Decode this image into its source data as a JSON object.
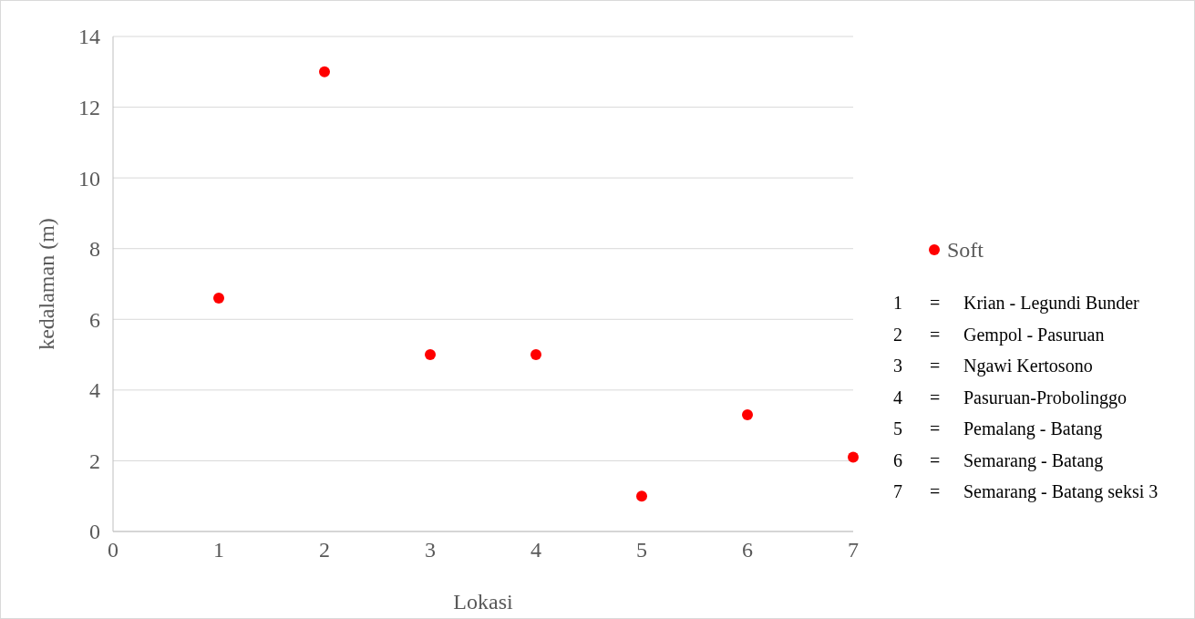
{
  "chart_data": {
    "type": "scatter",
    "xlabel": "Lokasi",
    "ylabel": "kedalaman (m)",
    "x": [
      1,
      2,
      3,
      4,
      5,
      6,
      7
    ],
    "series": [
      {
        "name": "Soft",
        "color": "#ff0000",
        "values": [
          6.6,
          13.0,
          5.0,
          5.0,
          1.0,
          3.3,
          2.1
        ]
      }
    ],
    "xlim": [
      0,
      7
    ],
    "xticks": [
      0,
      1,
      2,
      3,
      4,
      5,
      6,
      7
    ],
    "ylim": [
      0,
      14
    ],
    "yticks": [
      0,
      2,
      4,
      6,
      8,
      10,
      12,
      14
    ],
    "grid": "y",
    "legend": "right",
    "marker": "circle",
    "annotations": [
      "1 = Krian - Legundi Bunder",
      "2 = Gempol - Pasuruan",
      "3 = Ngawi Kertosono",
      "4 = Pasuruan-Probolinggo",
      "5 = Pemalang - Batang",
      "6 = Semarang - Batang",
      "7 = Semarang - Batang seksi 3"
    ]
  }
}
